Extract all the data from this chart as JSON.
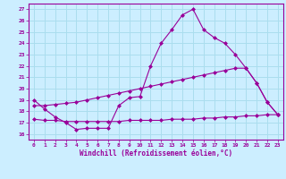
{
  "xlabel": "Windchill (Refroidissement éolien,°C)",
  "bg_color": "#cceeff",
  "grid_color": "#aaddee",
  "line_color": "#990099",
  "xlim": [
    -0.5,
    23.5
  ],
  "ylim": [
    15.5,
    27.5
  ],
  "xticks": [
    0,
    1,
    2,
    3,
    4,
    5,
    6,
    7,
    8,
    9,
    10,
    11,
    12,
    13,
    14,
    15,
    16,
    17,
    18,
    19,
    20,
    21,
    22,
    23
  ],
  "yticks": [
    16,
    17,
    18,
    19,
    20,
    21,
    22,
    23,
    24,
    25,
    26,
    27
  ],
  "curve1_x": [
    0,
    1,
    2,
    3,
    4,
    5,
    6,
    7,
    8,
    9,
    10,
    11,
    12,
    13,
    14,
    15,
    16,
    17,
    18,
    19,
    20,
    21,
    22,
    23
  ],
  "curve1_y": [
    19.0,
    18.2,
    17.5,
    17.0,
    16.4,
    16.5,
    16.5,
    16.5,
    18.5,
    19.2,
    19.3,
    22.0,
    24.0,
    25.2,
    26.5,
    27.0,
    25.2,
    24.5,
    24.0,
    23.0,
    21.8,
    20.5,
    18.8,
    17.7
  ],
  "curve2_x": [
    0,
    1,
    2,
    3,
    4,
    5,
    6,
    7,
    8,
    9,
    10,
    11,
    12,
    13,
    14,
    15,
    16,
    17,
    18,
    19,
    20,
    21,
    22,
    23
  ],
  "curve2_y": [
    18.5,
    18.5,
    18.6,
    18.7,
    18.8,
    19.0,
    19.2,
    19.4,
    19.6,
    19.8,
    20.0,
    20.2,
    20.4,
    20.6,
    20.8,
    21.0,
    21.2,
    21.4,
    21.6,
    21.8,
    21.8,
    20.5,
    18.8,
    17.7
  ],
  "curve3_x": [
    0,
    1,
    2,
    3,
    4,
    5,
    6,
    7,
    8,
    9,
    10,
    11,
    12,
    13,
    14,
    15,
    16,
    17,
    18,
    19,
    20,
    21,
    22,
    23
  ],
  "curve3_y": [
    17.3,
    17.2,
    17.2,
    17.1,
    17.1,
    17.1,
    17.1,
    17.1,
    17.1,
    17.2,
    17.2,
    17.2,
    17.2,
    17.3,
    17.3,
    17.3,
    17.4,
    17.4,
    17.5,
    17.5,
    17.6,
    17.6,
    17.7,
    17.7
  ]
}
